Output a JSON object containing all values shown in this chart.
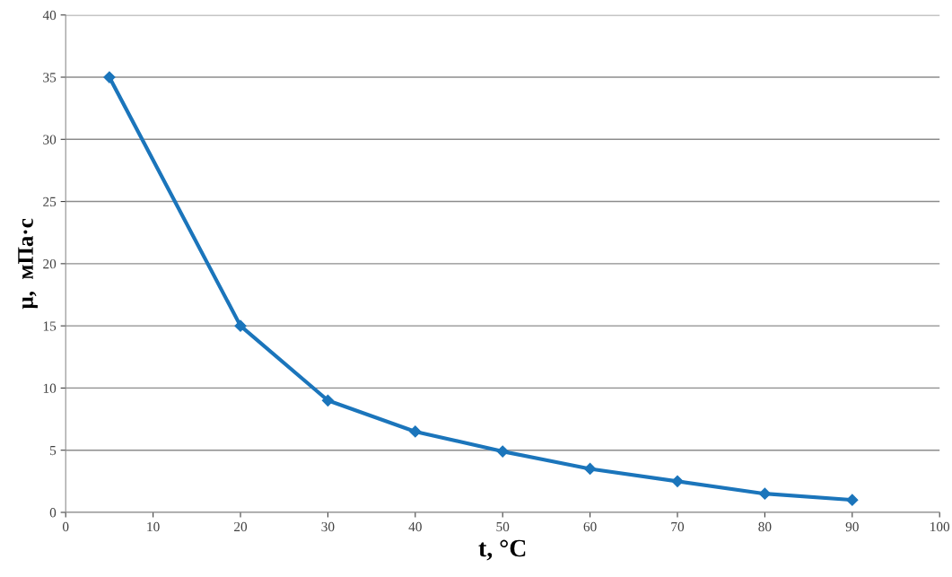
{
  "chart_data": {
    "type": "line",
    "xlabel": "t, °C",
    "ylabel": "μ,  мПа·с",
    "x": [
      5,
      20,
      30,
      40,
      50,
      60,
      70,
      80,
      90
    ],
    "series": [
      {
        "color": "#1b75bb",
        "values": [
          35,
          15,
          9,
          6.5,
          4.9,
          3.5,
          2.5,
          1.5,
          1.0
        ]
      }
    ],
    "xlim": [
      0,
      100
    ],
    "xticks": [
      0,
      10,
      20,
      30,
      40,
      50,
      60,
      70,
      80,
      90,
      100
    ],
    "ylim": [
      0,
      40
    ],
    "yticks": [
      0,
      5,
      10,
      15,
      20,
      25,
      30,
      35,
      40
    ],
    "grid": "y",
    "marker": "diamond",
    "line_style": "solid",
    "legend": false
  }
}
